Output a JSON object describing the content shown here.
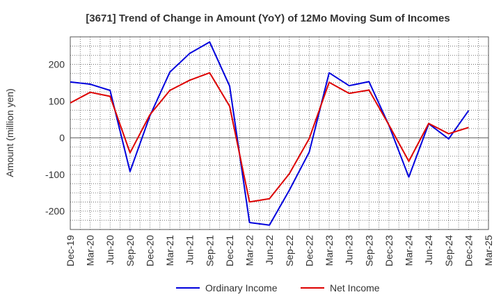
{
  "chart_data": {
    "type": "line",
    "title": "[3671]  Trend of Change in Amount (YoY) of 12Mo Moving Sum of Incomes",
    "ylabel": "Amount (million yen)",
    "xlabel": "",
    "ylim": [
      -250,
      275
    ],
    "yticks": [
      -200,
      -100,
      0,
      100,
      200
    ],
    "grid": true,
    "legend_position": "bottom",
    "categories": [
      "Dec-19",
      "Mar-20",
      "Jun-20",
      "Sep-20",
      "Dec-20",
      "Mar-21",
      "Jun-21",
      "Sep-21",
      "Dec-21",
      "Mar-22",
      "Jun-22",
      "Sep-22",
      "Dec-22",
      "Mar-23",
      "Jun-23",
      "Sep-23",
      "Dec-23",
      "Mar-24",
      "Jun-24",
      "Sep-24",
      "Dec-24",
      "Mar-25"
    ],
    "series": [
      {
        "name": "Ordinary Income",
        "color": "#0000dd",
        "values": [
          152,
          146,
          129,
          -92,
          60,
          179,
          230,
          261,
          141,
          -231,
          -238,
          -143,
          -39,
          177,
          142,
          153,
          34,
          -107,
          38,
          -3,
          74,
          null
        ]
      },
      {
        "name": "Net Income",
        "color": "#dd0000",
        "values": [
          95,
          124,
          113,
          -41,
          63,
          129,
          157,
          177,
          86,
          -175,
          -166,
          -98,
          -2,
          151,
          121,
          130,
          35,
          -64,
          39,
          11,
          28,
          null
        ]
      }
    ]
  }
}
